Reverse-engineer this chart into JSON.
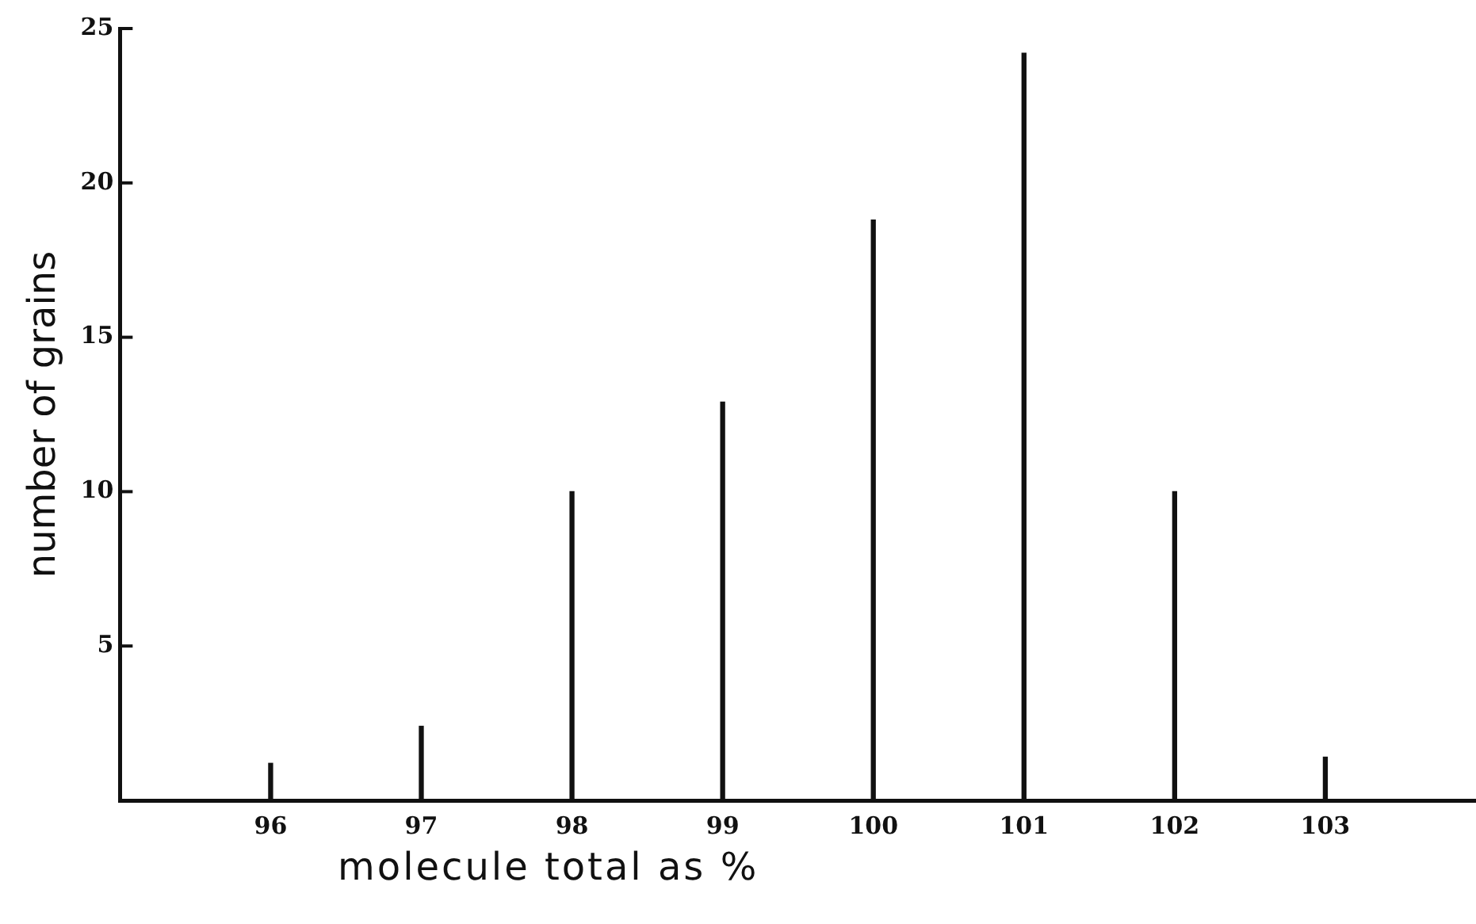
{
  "chart_data": {
    "type": "bar",
    "xlabel": "molecule total as %",
    "ylabel": "number of grains",
    "categories": [
      "96",
      "97",
      "98",
      "99",
      "100",
      "101",
      "102",
      "103"
    ],
    "values": [
      1.2,
      2.4,
      10,
      12.9,
      18.8,
      24.2,
      10,
      1.4
    ],
    "color": "#111111",
    "ylim": [
      0,
      25
    ],
    "yticks": [
      5,
      10,
      15,
      20,
      25
    ],
    "grid": false,
    "legend": false
  }
}
